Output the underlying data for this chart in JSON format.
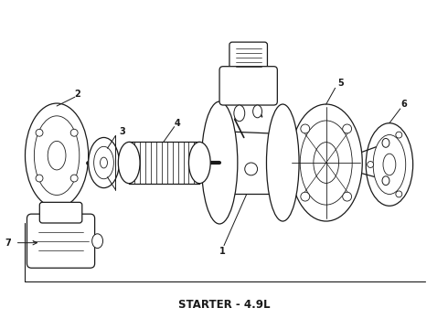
{
  "title": "STARTER - 4.9L",
  "title_fontsize": 8.5,
  "title_fontweight": "bold",
  "bg_color": "#ffffff",
  "line_color": "#1a1a1a",
  "label_fontsize": 7,
  "figsize": [
    4.9,
    3.6
  ],
  "dpi": 100
}
